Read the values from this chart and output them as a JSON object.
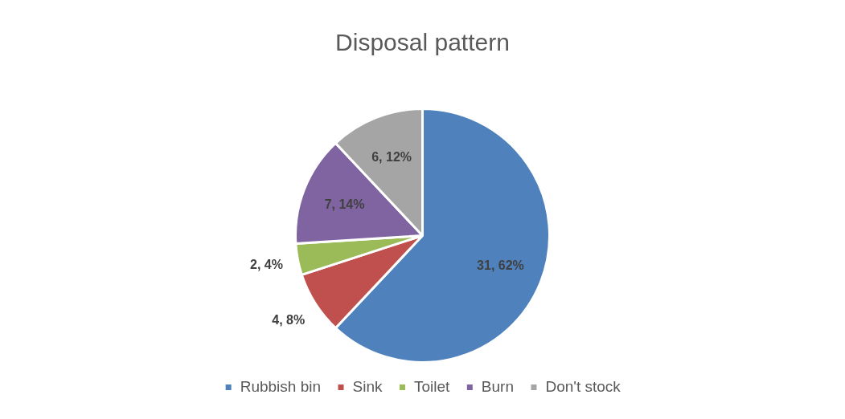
{
  "chart_data": {
    "type": "pie",
    "title": "Disposal pattern",
    "categories": [
      "Rubbish bin",
      "Sink",
      "Toilet",
      "Burn",
      "Don't stock"
    ],
    "values": [
      31,
      4,
      2,
      7,
      6
    ],
    "colors": [
      "#4f81bd",
      "#c0504d",
      "#9bbb59",
      "#8064a2",
      "#a5a5a5"
    ],
    "value_labels": [
      "31, 62%",
      "4, 8%",
      "2, 4%",
      "7, 14%",
      "6, 12%"
    ],
    "legend": "bottom"
  }
}
